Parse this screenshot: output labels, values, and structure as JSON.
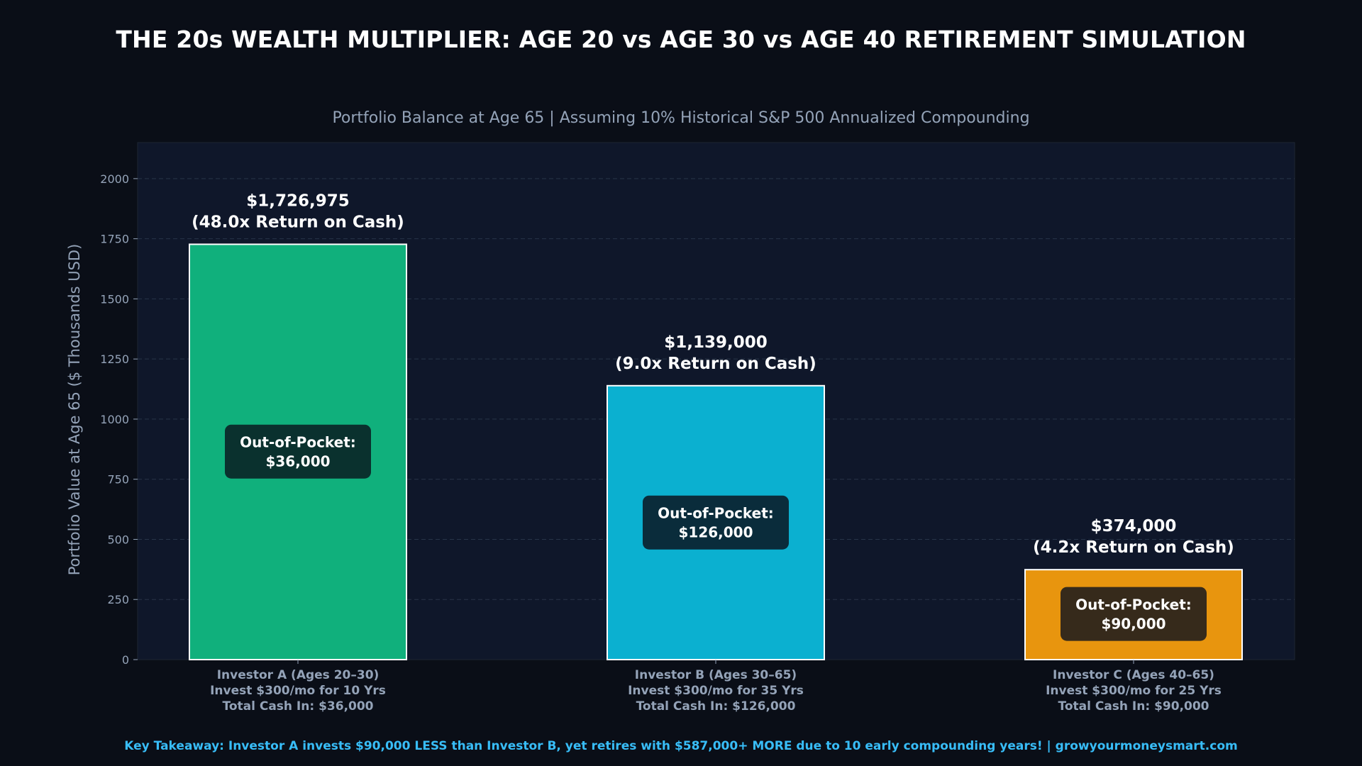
{
  "title": "THE 20s WEALTH MULTIPLIER: AGE 20 vs AGE 30 vs AGE 40 RETIREMENT SIMULATION",
  "footer": "Key Takeaway: Investor A invests $90,000 LESS than Investor B, yet retires with $587,000+ MORE due to 10 early compounding years! | growyourmoneysmart.com",
  "colors": {
    "background": "#0a0e17",
    "plot_background": "#0f172a",
    "investor_a": "#10b07c",
    "investor_b": "#0bb0d0",
    "investor_c": "#e8950e",
    "text_muted": "#94a3b8",
    "footer_accent": "#38bdf8"
  },
  "chart_data": {
    "type": "bar",
    "title": "Portfolio Balance at Age 65 | Assuming 10% Historical S&P 500 Annualized Compounding",
    "ylabel": "Portfolio Value at Age 65 ($ Thousands USD)",
    "xlabel": "",
    "ylim": [
      0,
      2150
    ],
    "yticks": [
      0,
      250,
      500,
      750,
      1000,
      1250,
      1500,
      1750,
      2000
    ],
    "grid": true,
    "categories": [
      [
        "Investor A (Ages 20–30)",
        "Invest $300/mo for 10 Yrs",
        "Total Cash In: $36,000"
      ],
      [
        "Investor B (Ages 30–65)",
        "Invest $300/mo for 35 Yrs",
        "Total Cash In: $126,000"
      ],
      [
        "Investor C (Ages 40–65)",
        "Invest $300/mo for 25 Yrs",
        "Total Cash In: $90,000"
      ]
    ],
    "values": [
      1726.975,
      1139.0,
      374.0
    ],
    "value_labels": [
      [
        "$1,726,975",
        "(48.0x Return on Cash)"
      ],
      [
        "$1,139,000",
        "(9.0x Return on Cash)"
      ],
      [
        "$374,000",
        "(4.2x Return on Cash)"
      ]
    ],
    "out_of_pocket_labels": [
      [
        "Out-of-Pocket:",
        "$36,000"
      ],
      [
        "Out-of-Pocket:",
        "$126,000"
      ],
      [
        "Out-of-Pocket:",
        "$90,000"
      ]
    ],
    "out_of_pocket_label_y": [
      865,
      570,
      190
    ],
    "bar_colors": [
      "#10b07c",
      "#0bb0d0",
      "#e8950e"
    ],
    "label_box_colors": [
      "#0b2a2a",
      "#0b2533",
      "#2c241c"
    ]
  }
}
